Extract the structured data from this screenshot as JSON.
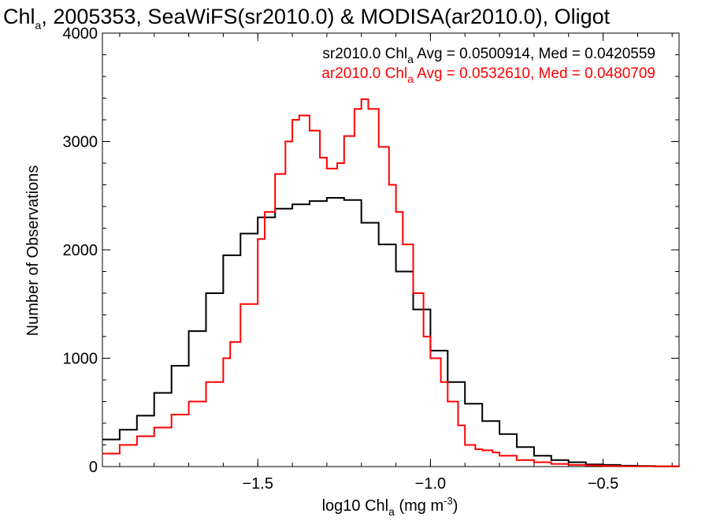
{
  "chart_data": {
    "type": "line",
    "title": {
      "pre": "Chl",
      "sub": "a",
      "post": ", 2005353, SeaWiFS(sr2010.0) & MODISA(ar2010.0), Oligot"
    },
    "xlabel": {
      "pre": "log10 Chl",
      "sub": "a",
      "mid": " (mg m",
      "sup": "-3",
      "post": ")"
    },
    "ylabel": "Number of Observations",
    "xlim": [
      -1.95,
      -0.28
    ],
    "ylim": [
      0,
      4000
    ],
    "x_major_ticks": [
      -1.5,
      -1.0,
      -0.5
    ],
    "x_tick_labels": [
      "−1.5",
      "−1.0",
      "−0.5"
    ],
    "x_minor_step": 0.1,
    "y_major_ticks": [
      0,
      1000,
      2000,
      3000,
      4000
    ],
    "y_tick_labels": [
      "0",
      "1000",
      "2000",
      "3000",
      "4000"
    ],
    "y_minor_step": 200,
    "grid": false,
    "legend_position": "top-right",
    "series": [
      {
        "name": "sr2010.0",
        "color": "#000000",
        "legend": {
          "pre": "sr2010.0 Chl",
          "sub": "a",
          "post": " Avg = 0.0500914, Med = 0.0420559"
        },
        "points": [
          [
            -1.95,
            250
          ],
          [
            -1.9,
            340
          ],
          [
            -1.85,
            470
          ],
          [
            -1.8,
            680
          ],
          [
            -1.75,
            930
          ],
          [
            -1.7,
            1250
          ],
          [
            -1.65,
            1600
          ],
          [
            -1.6,
            1950
          ],
          [
            -1.55,
            2150
          ],
          [
            -1.5,
            2300
          ],
          [
            -1.45,
            2380
          ],
          [
            -1.4,
            2420
          ],
          [
            -1.35,
            2450
          ],
          [
            -1.3,
            2480
          ],
          [
            -1.25,
            2460
          ],
          [
            -1.2,
            2250
          ],
          [
            -1.15,
            2050
          ],
          [
            -1.1,
            1800
          ],
          [
            -1.05,
            1450
          ],
          [
            -1.0,
            1070
          ],
          [
            -0.95,
            780
          ],
          [
            -0.9,
            580
          ],
          [
            -0.85,
            420
          ],
          [
            -0.8,
            300
          ],
          [
            -0.75,
            180
          ],
          [
            -0.7,
            100
          ],
          [
            -0.65,
            60
          ],
          [
            -0.6,
            40
          ],
          [
            -0.55,
            20
          ],
          [
            -0.5,
            15
          ],
          [
            -0.45,
            8
          ],
          [
            -0.4,
            5
          ],
          [
            -0.35,
            2
          ],
          [
            -0.28,
            0
          ]
        ]
      },
      {
        "name": "ar2010.0",
        "color": "#ff0000",
        "legend": {
          "pre": "ar2010.0 Chl",
          "sub": "a",
          "post": " Avg = 0.0532610, Med = 0.0480709"
        },
        "points": [
          [
            -1.95,
            120
          ],
          [
            -1.9,
            200
          ],
          [
            -1.85,
            280
          ],
          [
            -1.8,
            360
          ],
          [
            -1.75,
            480
          ],
          [
            -1.7,
            600
          ],
          [
            -1.65,
            780
          ],
          [
            -1.6,
            1000
          ],
          [
            -1.58,
            1150
          ],
          [
            -1.55,
            1500
          ],
          [
            -1.5,
            2100
          ],
          [
            -1.48,
            2350
          ],
          [
            -1.45,
            2700
          ],
          [
            -1.42,
            3000
          ],
          [
            -1.4,
            3200
          ],
          [
            -1.38,
            3240
          ],
          [
            -1.35,
            3100
          ],
          [
            -1.32,
            2850
          ],
          [
            -1.3,
            2750
          ],
          [
            -1.27,
            2800
          ],
          [
            -1.25,
            3050
          ],
          [
            -1.22,
            3300
          ],
          [
            -1.2,
            3390
          ],
          [
            -1.18,
            3300
          ],
          [
            -1.15,
            2950
          ],
          [
            -1.12,
            2600
          ],
          [
            -1.1,
            2350
          ],
          [
            -1.08,
            2050
          ],
          [
            -1.05,
            1600
          ],
          [
            -1.02,
            1200
          ],
          [
            -1.0,
            1000
          ],
          [
            -0.97,
            780
          ],
          [
            -0.95,
            600
          ],
          [
            -0.92,
            380
          ],
          [
            -0.9,
            200
          ],
          [
            -0.87,
            160
          ],
          [
            -0.85,
            150
          ],
          [
            -0.82,
            130
          ],
          [
            -0.8,
            100
          ],
          [
            -0.75,
            60
          ],
          [
            -0.7,
            40
          ],
          [
            -0.65,
            25
          ],
          [
            -0.6,
            15
          ],
          [
            -0.55,
            10
          ],
          [
            -0.5,
            5
          ],
          [
            -0.45,
            3
          ],
          [
            -0.28,
            0
          ]
        ]
      }
    ]
  }
}
